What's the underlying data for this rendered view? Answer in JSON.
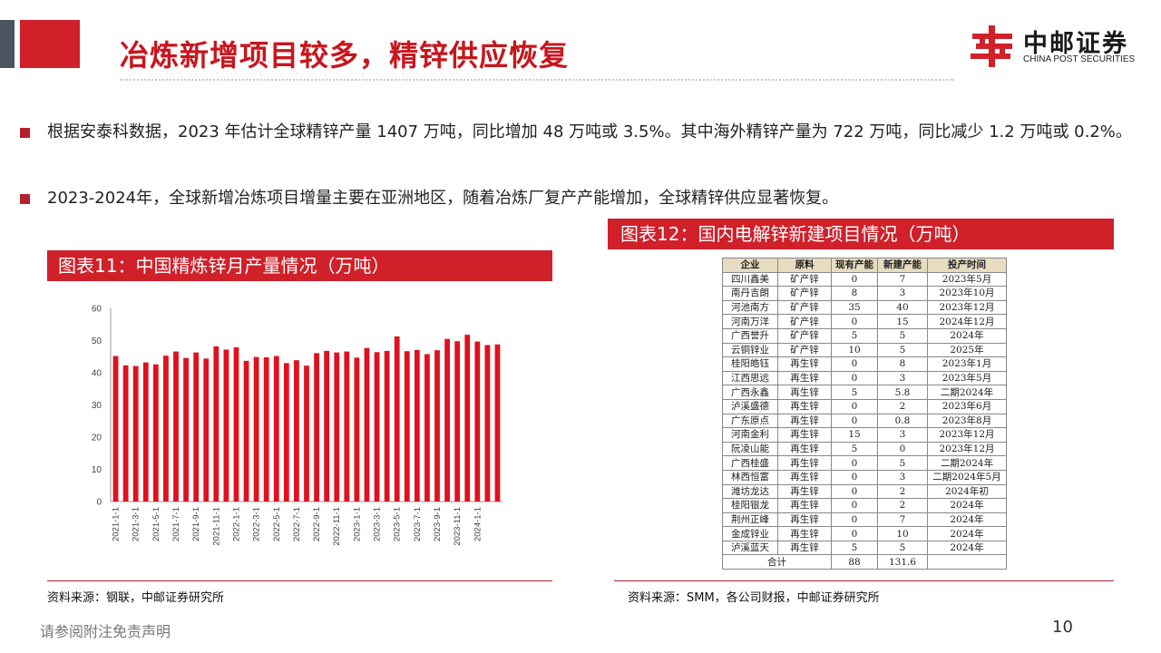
{
  "header": {
    "title": "冶炼新增项目较多，精锌供应恢复",
    "logo_cn": "中邮证券",
    "logo_en": "CHINA POST SECURITIES"
  },
  "bullets": [
    "根据安泰科数据，2023 年估计全球精锌产量 1407 万吨，同比增加 48 万吨或 3.5%。其中海外精锌产量为 722 万吨，同比减少 1.2 万吨或 0.2%。",
    "2023-2024年，全球新增冶炼项目增量主要在亚洲地区，随着冶炼厂复产产能增加，全球精锌供应显著恢复。"
  ],
  "chart_section": {
    "title": "图表11：中国精炼锌月产量情况（万吨）",
    "source": "资料来源：钢联，中邮证券研究所"
  },
  "chart_data": {
    "type": "bar",
    "title": "",
    "xlabel": "",
    "ylabel": "",
    "ylim": [
      0,
      60
    ],
    "yticks": [
      "0",
      "10",
      "20",
      "30",
      "40",
      "50",
      "60"
    ],
    "color": "#e0101e",
    "grid": false,
    "categories": [
      "2021-1-1",
      "2021-2-1",
      "2021-3-1",
      "2021-4-1",
      "2021-5-1",
      "2021-6-1",
      "2021-7-1",
      "2021-8-1",
      "2021-9-1",
      "2021-10-1",
      "2021-11-1",
      "2021-12-1",
      "2022-1-1",
      "2022-2-1",
      "2022-3-1",
      "2022-4-1",
      "2022-5-1",
      "2022-6-1",
      "2022-7-1",
      "2022-8-1",
      "2022-9-1",
      "2022-10-1",
      "2022-11-1",
      "2022-12-1",
      "2023-1-1",
      "2023-2-1",
      "2023-3-1",
      "2023-4-1",
      "2023-5-1",
      "2023-6-1",
      "2023-7-1",
      "2023-8-1",
      "2023-9-1",
      "2023-10-1",
      "2023-11-1",
      "2023-12-1",
      "2024-1-1",
      "2024-2-1",
      "2024-3-1"
    ],
    "x_tick_labels": [
      "2021-1-1",
      "",
      "2021-3-1",
      "",
      "2021-5-1",
      "",
      "2021-7-1",
      "",
      "2021-9-1",
      "",
      "2021-11-1",
      "",
      "2022-1-1",
      "",
      "2022-3-1",
      "",
      "2022-5-1",
      "",
      "2022-7-1",
      "",
      "2022-9-1",
      "",
      "2022-11-1",
      "",
      "2023-1-1",
      "",
      "2023-3-1",
      "",
      "2023-5-1",
      "",
      "2023-7-1",
      "",
      "2023-9-1",
      "",
      "2023-11-1",
      "",
      "2024-1-1",
      "",
      ""
    ],
    "values": [
      45.2,
      42.3,
      42.1,
      43.2,
      42.6,
      45.3,
      46.6,
      44.6,
      46.3,
      44.4,
      48.2,
      47.2,
      47.9,
      43.7,
      44.9,
      44.8,
      45.2,
      43.0,
      43.9,
      42.2,
      46.1,
      46.8,
      46.3,
      46.6,
      44.7,
      47.7,
      46.4,
      46.8,
      51.3,
      46.7,
      47.1,
      45.8,
      47.0,
      50.5,
      49.8,
      51.8,
      49.7,
      48.6,
      48.8
    ]
  },
  "table_section": {
    "title": "图表12：国内电解锌新建项目情况（万吨）",
    "source": "资料来源：SMM，各公司财报，中邮证券研究所",
    "headers": [
      "企业",
      "原料",
      "现有产能",
      "新建产能",
      "投产时间"
    ],
    "rows": [
      [
        "四川鑫美",
        "矿产锌",
        "0",
        "7",
        "2023年5月"
      ],
      [
        "南丹吉朗",
        "矿产锌",
        "8",
        "3",
        "2023年10月"
      ],
      [
        "河池南方",
        "矿产锌",
        "35",
        "40",
        "2023年12月"
      ],
      [
        "河南万洋",
        "矿产锌",
        "0",
        "15",
        "2024年12月"
      ],
      [
        "广西誉升",
        "矿产锌",
        "5",
        "5",
        "2024年"
      ],
      [
        "云铜锌业",
        "矿产锌",
        "10",
        "5",
        "2025年"
      ],
      [
        "桂阳皓钰",
        "再生锌",
        "0",
        "8",
        "2023年1月"
      ],
      [
        "江西思远",
        "再生锌",
        "0",
        "3",
        "2023年5月"
      ],
      [
        "广西永鑫",
        "再生锌",
        "5",
        "5.8",
        "二期2024年"
      ],
      [
        "泸溪盛德",
        "再生锌",
        "0",
        "2",
        "2023年6月"
      ],
      [
        "广东原点",
        "再生锌",
        "0",
        "0.8",
        "2023年8月"
      ],
      [
        "河南金利",
        "再生锌",
        "15",
        "3",
        "2023年12月"
      ],
      [
        "阮凌山能",
        "再生锌",
        "5",
        "0",
        "2023年12月"
      ],
      [
        "广西桂盛",
        "再生锌",
        "0",
        "5",
        "二期2024年"
      ],
      [
        "林西恒富",
        "再生锌",
        "0",
        "3",
        "二期2024年5月"
      ],
      [
        "潍坊龙达",
        "再生锌",
        "0",
        "2",
        "2024年初"
      ],
      [
        "桂阳银龙",
        "再生锌",
        "0",
        "2",
        "2024年"
      ],
      [
        "荆州正峰",
        "再生锌",
        "0",
        "7",
        "2024年"
      ],
      [
        "金成锌业",
        "再生锌",
        "0",
        "10",
        "2024年"
      ],
      [
        "泸溪蓝天",
        "再生锌",
        "5",
        "5",
        "2024年"
      ]
    ],
    "total": [
      "合计",
      "88",
      "131.6",
      ""
    ]
  },
  "footer": {
    "disclaimer": "请参阅附注免责声明",
    "page": "10"
  }
}
